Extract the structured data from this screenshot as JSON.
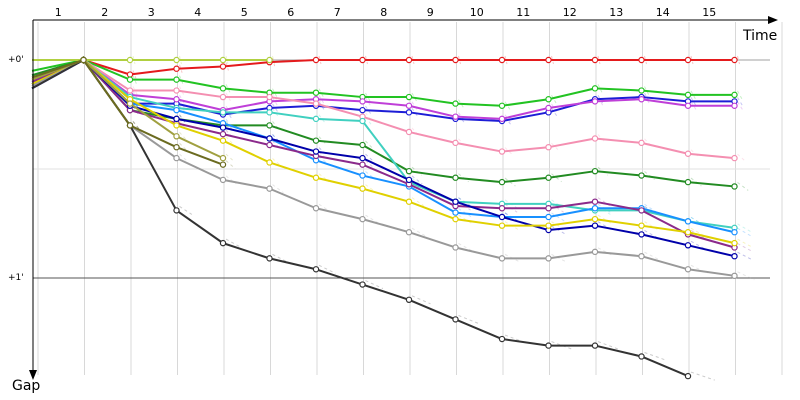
{
  "chart_data": {
    "type": "line",
    "xlabel": "Time",
    "ylabel": "Gap",
    "x_ticks": [
      "1",
      "2",
      "3",
      "4",
      "5",
      "6",
      "7",
      "8",
      "9",
      "10",
      "11",
      "12",
      "13",
      "14",
      "15"
    ],
    "y_ticks": [
      {
        "label": "+0'",
        "value": 0
      },
      {
        "label": "+1'",
        "value": 60
      }
    ],
    "ylim": [
      0,
      90
    ],
    "grid": true,
    "series": [
      {
        "color": "#e41a1c",
        "values": [
          0,
          0,
          4,
          2.4,
          1.8,
          0.6,
          0,
          0,
          0,
          0,
          0,
          0,
          0,
          0,
          0,
          0
        ]
      },
      {
        "color": "#22c322",
        "values": [
          3,
          0,
          5.4,
          5.4,
          7.8,
          9,
          9,
          10.2,
          10.2,
          12,
          12.6,
          10.8,
          7.8,
          8.4,
          9.6,
          9.6
        ]
      },
      {
        "color": "#1d1dd6",
        "values": [
          7.8,
          0,
          12,
          12,
          15,
          13.2,
          12.6,
          13.8,
          14.4,
          16.2,
          16.8,
          14.4,
          10.8,
          10.2,
          11.4,
          11.4
        ]
      },
      {
        "color": "#bf3fd8",
        "values": [
          6.6,
          0,
          9.6,
          10.8,
          13.8,
          11.4,
          10.8,
          11.4,
          12.6,
          15.6,
          16.2,
          13.2,
          11.4,
          10.8,
          12.6,
          12.6
        ]
      },
      {
        "color": "#f48fb1",
        "values": [
          5.4,
          0,
          8.4,
          8.4,
          10.2,
          10.2,
          12,
          15.6,
          19.8,
          22.8,
          25.2,
          24,
          21.6,
          22.8,
          25.8,
          27
        ]
      },
      {
        "color": "#228b22",
        "values": [
          4.2,
          0,
          13.8,
          16.2,
          18,
          18,
          22.2,
          23.4,
          30.6,
          32.4,
          33.6,
          32.4,
          30.6,
          31.8,
          33.6,
          34.8
        ]
      },
      {
        "color": "#40d0c0",
        "values": [
          6,
          0,
          10.2,
          13.2,
          14.4,
          14.4,
          16.2,
          16.8,
          33.6,
          39,
          39.6,
          39.6,
          41.4,
          41.4,
          44.4,
          46.2
        ]
      },
      {
        "color": "#1890ff",
        "values": [
          6.6,
          0,
          12,
          13.8,
          17.4,
          21.6,
          27.6,
          31.8,
          34.8,
          42,
          43.2,
          43.2,
          40.8,
          40.8,
          44.4,
          47.4
        ]
      },
      {
        "color": "#8b2a8b",
        "values": [
          6,
          0,
          13.8,
          17.4,
          20.4,
          23.4,
          26.4,
          28.8,
          34.2,
          40.2,
          40.8,
          40.8,
          39,
          41.4,
          48,
          51.6
        ]
      },
      {
        "color": "#0000aa",
        "values": [
          6.6,
          0,
          12.6,
          16.2,
          18.6,
          21.6,
          25.2,
          27,
          33,
          39,
          43.2,
          46.8,
          45.6,
          48,
          51,
          54
        ]
      },
      {
        "color": "#e0d000",
        "values": [
          6.6,
          0,
          10.8,
          18,
          22.2,
          28.2,
          32.4,
          35.4,
          39,
          43.8,
          45.6,
          45.6,
          43.8,
          45.6,
          47.4,
          50.4
        ]
      },
      {
        "color": "#999999",
        "values": [
          7.2,
          0,
          18,
          27,
          33,
          35.4,
          40.8,
          43.8,
          47.4,
          51.6,
          54.6,
          54.6,
          52.8,
          54,
          57.6,
          59.4
        ]
      },
      {
        "color": "#333333",
        "values": [
          7.8,
          0,
          18,
          41.4,
          50.4,
          54.6,
          57.6,
          61.8,
          66,
          71.4,
          76.8,
          78.6,
          78.6,
          81.6,
          87
        ]
      },
      {
        "color": "#b0d040",
        "values": [
          0,
          0,
          0,
          0,
          0,
          0
        ]
      },
      {
        "color": "#a0a040",
        "values": [
          5.4,
          0,
          12,
          21,
          27
        ]
      },
      {
        "color": "#6b6b20",
        "values": [
          4.8,
          0,
          18,
          24,
          28.8
        ]
      }
    ]
  }
}
